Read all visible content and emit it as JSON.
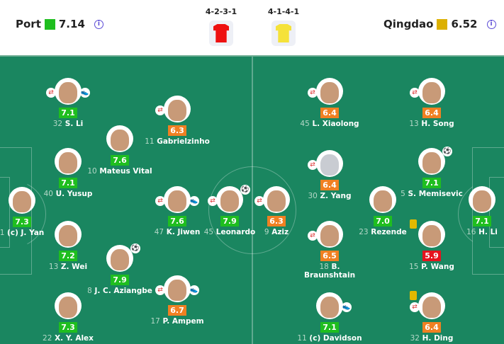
{
  "header": {
    "home": {
      "name": "Port",
      "rating": "7.14",
      "color": "#1fbe1f",
      "formation": "4-2-3-1",
      "shirt_color": "#ee1111"
    },
    "away": {
      "name": "Qingdao",
      "rating": "6.52",
      "color": "#dcb000",
      "formation": "4-1-4-1",
      "shirt_color": "#f5e23a"
    },
    "info_icon": "info-icon"
  },
  "rating_colors": {
    "high": "#1fbe1f",
    "mid": "#f08022",
    "low": "#e5141e"
  },
  "players": [
    {
      "num": "1",
      "name": "(c) J. Yan",
      "rating": "7.3",
      "team": "home"
    },
    {
      "num": "32",
      "name": "S. Li",
      "rating": "7.1",
      "team": "home",
      "sub": true,
      "boot": true
    },
    {
      "num": "40",
      "name": "U. Yusup",
      "rating": "7.1",
      "team": "home"
    },
    {
      "num": "13",
      "name": "Z. Wei",
      "rating": "7.2",
      "team": "home"
    },
    {
      "num": "22",
      "name": "X. Y. Alex",
      "rating": "7.3",
      "team": "home"
    },
    {
      "num": "10",
      "name": "Mateus Vital",
      "rating": "7.6",
      "team": "home"
    },
    {
      "num": "8",
      "name": "J. C. Aziangbe",
      "rating": "7.9",
      "team": "home",
      "goal": true
    },
    {
      "num": "11",
      "name": "Gabrielzinho",
      "rating": "6.3",
      "team": "home",
      "sub": true
    },
    {
      "num": "47",
      "name": "K. Jiwen",
      "rating": "7.6",
      "team": "home",
      "sub": true,
      "boot": true
    },
    {
      "num": "17",
      "name": "P. Ampem",
      "rating": "6.7",
      "team": "home",
      "sub": true,
      "boot": true
    },
    {
      "num": "45",
      "name": "Leonardo",
      "rating": "7.9",
      "team": "home",
      "sub": true,
      "goal": true
    },
    {
      "num": "9",
      "name": "Aziz",
      "rating": "6.3",
      "team": "away",
      "sub": true
    },
    {
      "num": "45",
      "name": "L. Xiaolong",
      "rating": "6.4",
      "team": "away",
      "sub": true
    },
    {
      "num": "30",
      "name": "Z. Yang",
      "rating": "6.4",
      "team": "away",
      "sub": true
    },
    {
      "num": "18",
      "name": "B. Braunshtain",
      "rating": "6.5",
      "team": "away",
      "sub": true
    },
    {
      "num": "11",
      "name": "(c) Davidson",
      "rating": "7.1",
      "team": "away",
      "boot": true
    },
    {
      "num": "23",
      "name": "Rezende",
      "rating": "7.0",
      "team": "away"
    },
    {
      "num": "13",
      "name": "H. Song",
      "rating": "6.4",
      "team": "away",
      "sub": true
    },
    {
      "num": "5",
      "name": "S. Memisevic",
      "rating": "7.1",
      "team": "away",
      "goal": true
    },
    {
      "num": "15",
      "name": "P. Wang",
      "rating": "5.9",
      "team": "away",
      "yellow": true
    },
    {
      "num": "32",
      "name": "H. Ding",
      "rating": "6.4",
      "team": "away",
      "yellow": true,
      "sub": true
    },
    {
      "num": "16",
      "name": "H. Li",
      "rating": "7.1",
      "team": "away"
    }
  ]
}
